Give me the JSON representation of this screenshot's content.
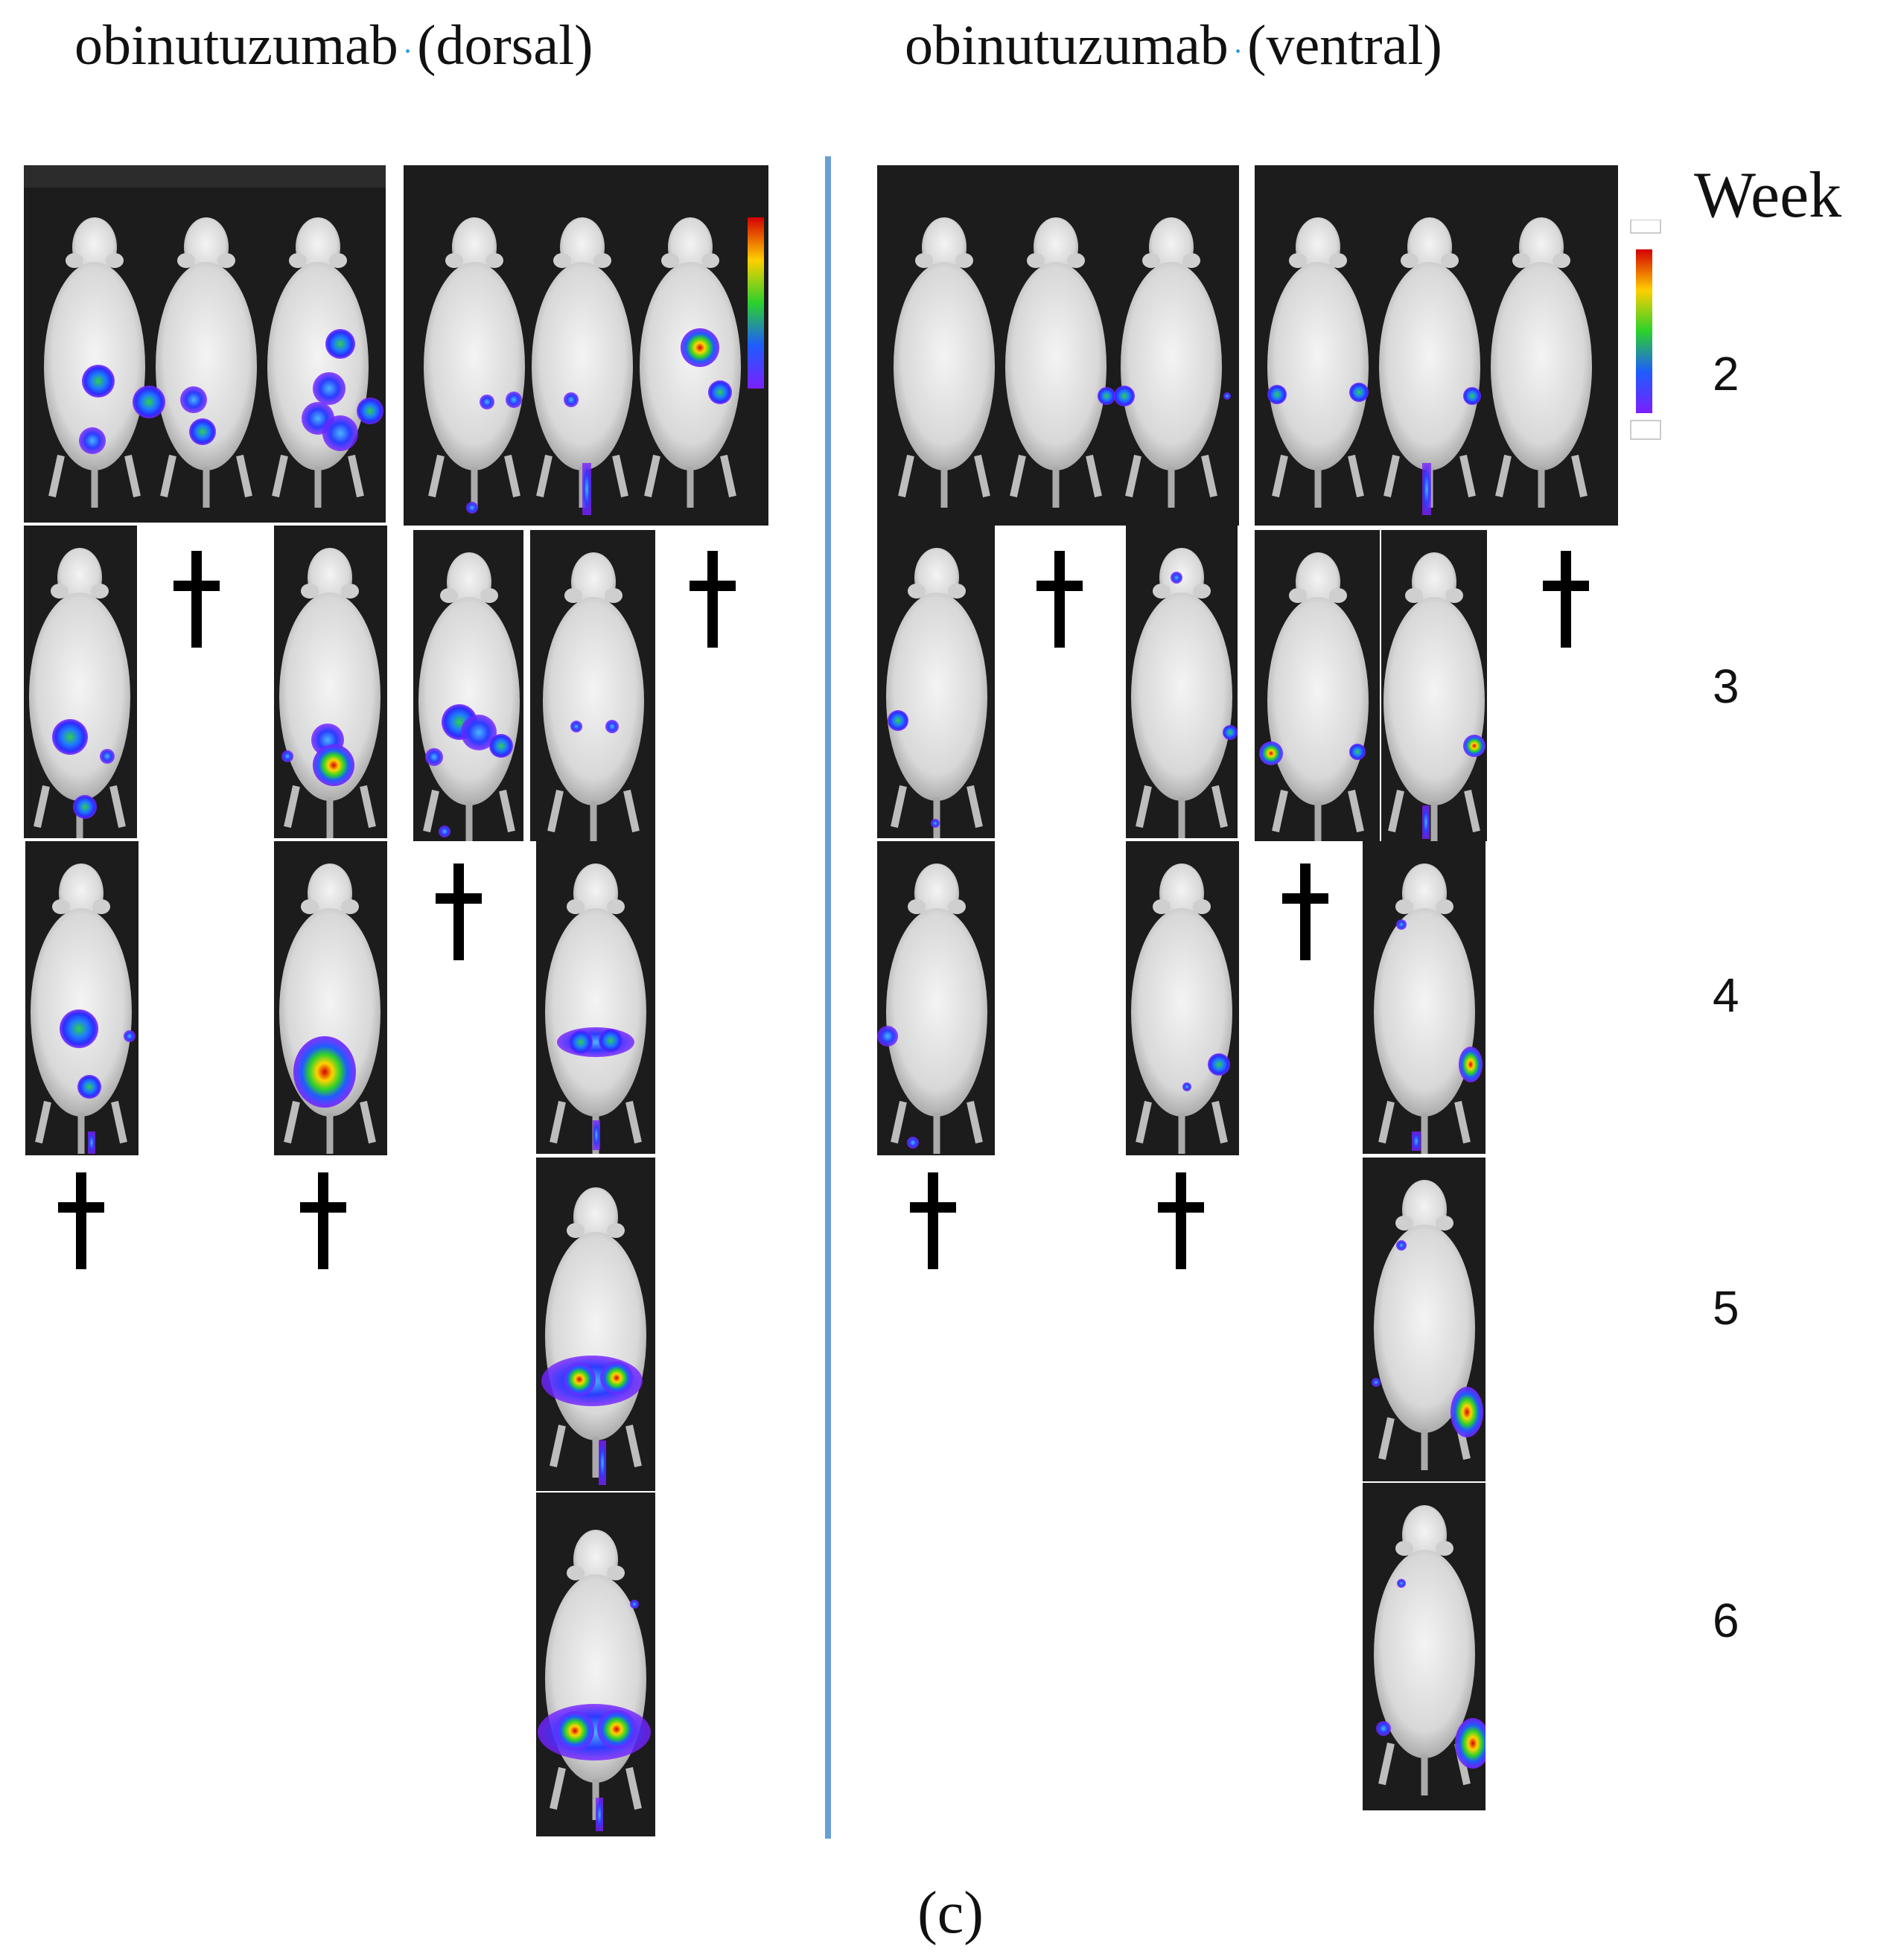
{
  "titles": {
    "dorsal": "obinutuzumab",
    "dorsal_suffix": "(dorsal)",
    "ventral": "obinutuzumab",
    "ventral_suffix": "(ventral)",
    "separator": "·"
  },
  "week_header": "Week",
  "weeks": [
    "2",
    "3",
    "4",
    "5",
    "6"
  ],
  "caption": "(c)",
  "colors": {
    "divider": "#6a9fd6",
    "separator_dot": "#2a9ad8",
    "panel_bg": "#1c1c1c"
  },
  "icons": [
    "mouse-image",
    "death-cross-icon",
    "bioluminescence-colorbar"
  ]
}
